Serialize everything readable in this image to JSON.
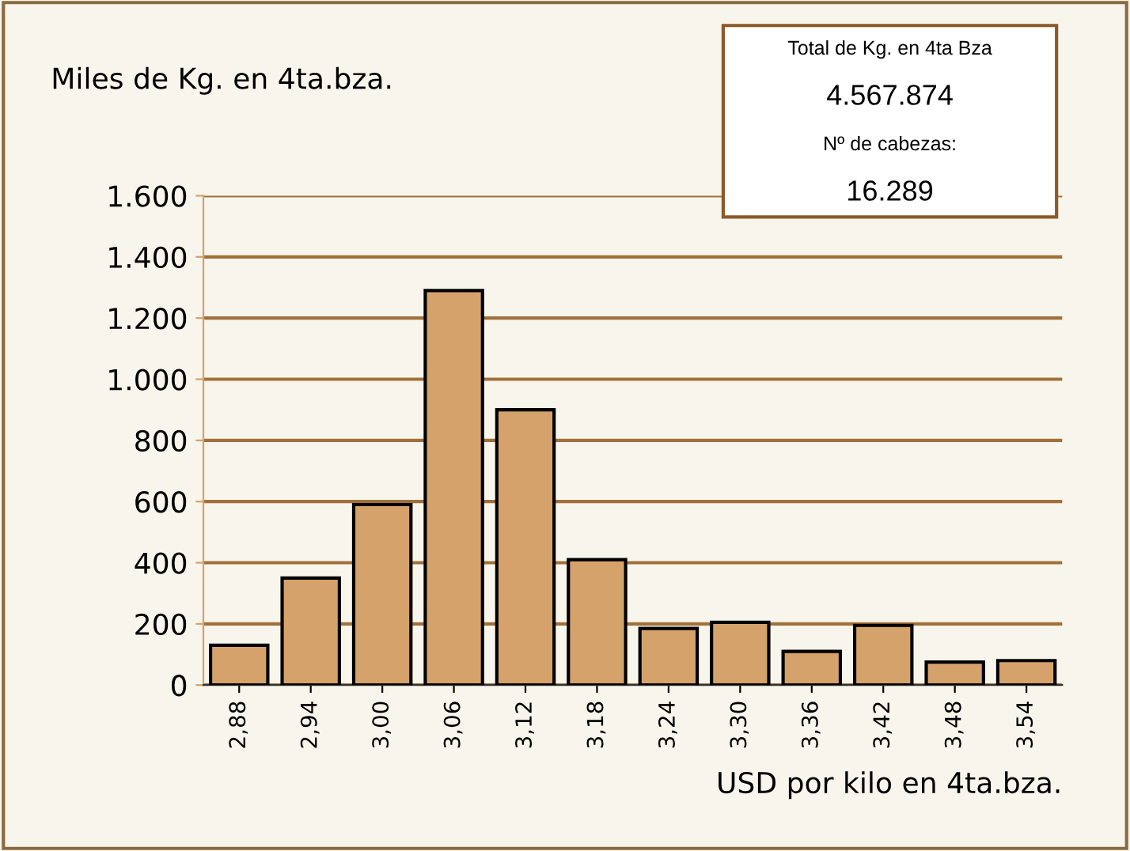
{
  "chart_data": {
    "type": "bar",
    "ylabel": "Miles de Kg. en 4ta.bza.",
    "xlabel": "USD por kilo en 4ta.bza.",
    "categories": [
      "2,88",
      "2,94",
      "3,00",
      "3,06",
      "3,12",
      "3,18",
      "3,24",
      "3,30",
      "3,36",
      "3,42",
      "3,48",
      "3,54"
    ],
    "values": [
      130,
      350,
      590,
      1290,
      900,
      410,
      185,
      205,
      110,
      195,
      75,
      80
    ],
    "color": "#d6a26c",
    "ylim": [
      0,
      1600
    ],
    "yticks": [
      0,
      {
        "value": 200,
        "label": "200"
      },
      {
        "value": 400,
        "label": "400"
      },
      {
        "value": 600,
        "label": "600"
      },
      {
        "value": 800,
        "label": "800"
      },
      {
        "value": 1000,
        "label": "1.000"
      },
      {
        "value": 1200,
        "label": "1.200"
      },
      {
        "value": 1400,
        "label": "1.400"
      },
      {
        "value": 1600,
        "label": "1.600"
      }
    ],
    "grid": "y",
    "annotations": [
      "Total de Kg. en 4ta Bza",
      "4.567.874",
      "Nº de cabezas:",
      "16.289"
    ]
  }
}
